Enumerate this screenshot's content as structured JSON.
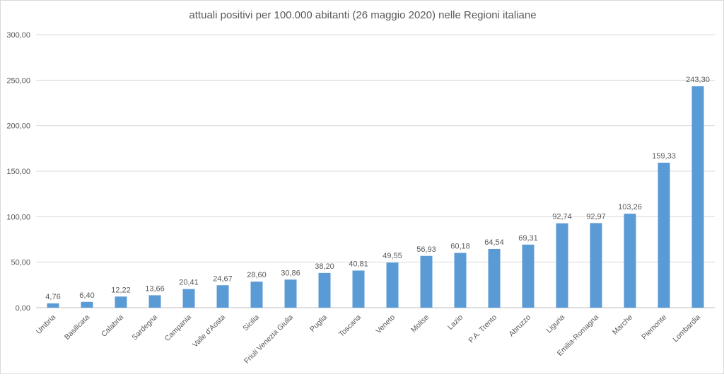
{
  "chart_data": {
    "type": "bar",
    "title": "attuali positivi per 100.000 abitanti (26 maggio 2020) nelle Regioni italiane",
    "xlabel": "",
    "ylabel": "",
    "ylim": [
      0,
      300
    ],
    "yticks": [
      "0,00",
      "50,00",
      "100,00",
      "150,00",
      "200,00",
      "250,00",
      "300,00"
    ],
    "grid": true,
    "legend": "none",
    "bar_color": "#5b9bd5",
    "categories": [
      "Umbria",
      "Basilicata",
      "Calabria",
      "Sardegna",
      "Campania",
      "Valle d'Aosta",
      "Sicilia",
      "Friuli Venezia Giulia",
      "Puglia",
      "Toscana",
      "Veneto",
      "Molise",
      "Lazio",
      "P.A. Trento",
      "Abruzzo",
      "Liguria",
      "Emilia-Romagna",
      "Marche",
      "Piemonte",
      "Lombardia"
    ],
    "values": [
      4.76,
      6.4,
      12.22,
      13.66,
      20.41,
      24.67,
      28.6,
      30.86,
      38.2,
      40.81,
      49.55,
      56.93,
      60.18,
      64.54,
      69.31,
      92.74,
      92.97,
      103.26,
      159.33,
      243.3
    ],
    "data_labels": [
      "4,76",
      "6,40",
      "12,22",
      "13,66",
      "20,41",
      "24,67",
      "28,60",
      "30,86",
      "38,20",
      "40,81",
      "49,55",
      "56,93",
      "60,18",
      "64,54",
      "69,31",
      "92,74",
      "92,97",
      "103,26",
      "159,33",
      "243,30"
    ]
  }
}
